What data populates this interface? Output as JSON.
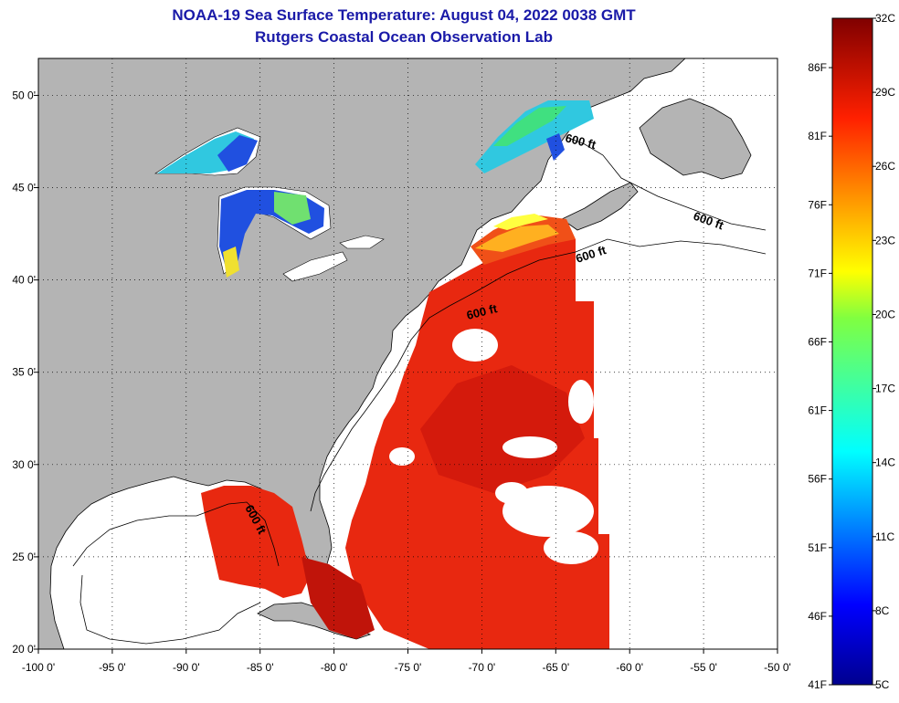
{
  "title": "NOAA-19 Sea Surface Temperature:  August 04, 2022 0038 GMT",
  "subtitle": "Rutgers Coastal Ocean Observation Lab",
  "map": {
    "lon_range": [
      -100,
      -50
    ],
    "lat_range": [
      20,
      52
    ],
    "lon_ticks": [
      "-100 0'",
      "-95 0'",
      "-90 0'",
      "-85 0'",
      "-80 0'",
      "-75 0'",
      "-70 0'",
      "-65 0'",
      "-60 0'",
      "-55 0'",
      "-50 0'"
    ],
    "lat_ticks": [
      {
        "lat": 50,
        "label": "50 0'"
      },
      {
        "lat": 45,
        "label": "45 0'"
      },
      {
        "lat": 40,
        "label": "40 0'"
      },
      {
        "lat": 35,
        "label": "35 0'"
      },
      {
        "lat": 30,
        "label": "30 0'"
      },
      {
        "lat": 25,
        "label": "25 0'"
      },
      {
        "lat": 20,
        "label": "20 0'"
      }
    ],
    "contour_labels": [
      "600 ft",
      "600 ft",
      "600 ft",
      "600 ft",
      "600 ft"
    ],
    "grid": "dotted",
    "colors": {
      "land": "#b4b4b4",
      "no_data": "#ffffff",
      "sst_warm": "#e82810"
    }
  },
  "colorbar": {
    "range_c": [
      5,
      32
    ],
    "celsius_labels": [
      "32C",
      "29C",
      "26C",
      "23C",
      "20C",
      "17C",
      "14C",
      "11C",
      "8C",
      "5C"
    ],
    "fahrenheit_labels": [
      "86F",
      "81F",
      "76F",
      "71F",
      "66F",
      "61F",
      "56F",
      "51F",
      "46F",
      "41F"
    ]
  }
}
